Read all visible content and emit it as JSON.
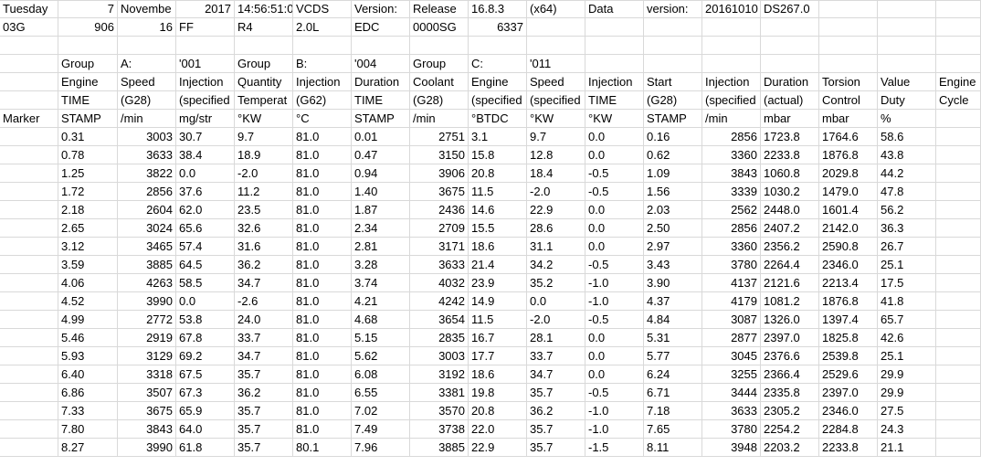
{
  "rows": [
    [
      [
        "Tuesday",
        "t"
      ],
      [
        "7",
        "n"
      ],
      [
        "Novembe",
        "t"
      ],
      [
        "2017",
        "n"
      ],
      [
        "14:56:51:0",
        "t"
      ],
      [
        "VCDS",
        "t"
      ],
      [
        "Version:",
        "t"
      ],
      [
        "Release",
        "t"
      ],
      [
        "16.8.3",
        "t"
      ],
      [
        "(x64)",
        "t"
      ],
      [
        "Data",
        "t"
      ],
      [
        "version:",
        "t"
      ],
      [
        "20161010",
        "t"
      ],
      [
        "DS267.0",
        "t"
      ],
      [
        "",
        "t"
      ],
      [
        "",
        "t"
      ],
      [
        "",
        "t"
      ]
    ],
    [
      [
        "03G",
        "t"
      ],
      [
        "906",
        "n"
      ],
      [
        "16",
        "n"
      ],
      [
        "FF",
        "t"
      ],
      [
        "R4",
        "t"
      ],
      [
        "2.0L",
        "t"
      ],
      [
        "EDC",
        "t"
      ],
      [
        "0000SG",
        "t"
      ],
      [
        "6337",
        "n"
      ],
      [
        "",
        "t"
      ],
      [
        "",
        "t"
      ],
      [
        "",
        "t"
      ],
      [
        "",
        "t"
      ],
      [
        "",
        "t"
      ],
      [
        "",
        "t"
      ],
      [
        "",
        "t"
      ],
      [
        "",
        "t"
      ]
    ],
    [
      [
        "",
        "t"
      ],
      [
        "",
        "t"
      ],
      [
        "",
        "t"
      ],
      [
        "",
        "t"
      ],
      [
        "",
        "t"
      ],
      [
        "",
        "t"
      ],
      [
        "",
        "t"
      ],
      [
        "",
        "t"
      ],
      [
        "",
        "t"
      ],
      [
        "",
        "t"
      ],
      [
        "",
        "t"
      ],
      [
        "",
        "t"
      ],
      [
        "",
        "t"
      ],
      [
        "",
        "t"
      ],
      [
        "",
        "t"
      ],
      [
        "",
        "t"
      ],
      [
        "",
        "t"
      ]
    ],
    [
      [
        "",
        "t"
      ],
      [
        "Group",
        "t"
      ],
      [
        "A:",
        "t"
      ],
      [
        "'001",
        "t"
      ],
      [
        "Group",
        "t"
      ],
      [
        "B:",
        "t"
      ],
      [
        "'004",
        "t"
      ],
      [
        "Group",
        "t"
      ],
      [
        "C:",
        "t"
      ],
      [
        "'011",
        "t"
      ],
      [
        "",
        "t"
      ],
      [
        "",
        "t"
      ],
      [
        "",
        "t"
      ],
      [
        "",
        "t"
      ],
      [
        "",
        "t"
      ],
      [
        "",
        "t"
      ],
      [
        "",
        "t"
      ]
    ],
    [
      [
        "",
        "t"
      ],
      [
        "Engine",
        "t"
      ],
      [
        "Speed",
        "t"
      ],
      [
        "Injection",
        "t"
      ],
      [
        "Quantity",
        "t"
      ],
      [
        "Injection",
        "t"
      ],
      [
        "Duration",
        "t"
      ],
      [
        "Coolant",
        "t"
      ],
      [
        "Engine",
        "t"
      ],
      [
        "Speed",
        "t"
      ],
      [
        "Injection",
        "t"
      ],
      [
        "Start",
        "t"
      ],
      [
        "Injection",
        "t"
      ],
      [
        "Duration",
        "t"
      ],
      [
        "Torsion",
        "t"
      ],
      [
        "Value",
        "t"
      ],
      [
        "Engine",
        "t"
      ]
    ],
    [
      [
        "",
        "t"
      ],
      [
        "TIME",
        "t"
      ],
      [
        "(G28)",
        "t"
      ],
      [
        "(specified",
        "t"
      ],
      [
        "Temperat",
        "t"
      ],
      [
        "(G62)",
        "t"
      ],
      [
        "TIME",
        "t"
      ],
      [
        "(G28)",
        "t"
      ],
      [
        "(specified",
        "t"
      ],
      [
        "(specified",
        "t"
      ],
      [
        "TIME",
        "t"
      ],
      [
        "(G28)",
        "t"
      ],
      [
        "(specified",
        "t"
      ],
      [
        "(actual)",
        "t"
      ],
      [
        "Control",
        "t"
      ],
      [
        "Duty",
        "t"
      ],
      [
        "Cycle",
        "t"
      ]
    ],
    [
      [
        "Marker",
        "t"
      ],
      [
        "STAMP",
        "t"
      ],
      [
        "/min",
        "t"
      ],
      [
        "mg/str",
        "t"
      ],
      [
        "°KW",
        "t"
      ],
      [
        "°C",
        "t"
      ],
      [
        "STAMP",
        "t"
      ],
      [
        "/min",
        "t"
      ],
      [
        "°BTDC",
        "t"
      ],
      [
        "°KW",
        "t"
      ],
      [
        "°KW",
        "t"
      ],
      [
        "STAMP",
        "t"
      ],
      [
        "/min",
        "t"
      ],
      [
        "mbar",
        "t"
      ],
      [
        "mbar",
        "t"
      ],
      [
        "%",
        "t"
      ],
      [
        "",
        "t"
      ]
    ],
    [
      [
        "",
        "t"
      ],
      [
        "0.31",
        "t"
      ],
      [
        "3003",
        "n"
      ],
      [
        "30.7",
        "t"
      ],
      [
        "9.7",
        "t"
      ],
      [
        "81.0",
        "t"
      ],
      [
        "0.01",
        "t"
      ],
      [
        "2751",
        "n"
      ],
      [
        "3.1",
        "t"
      ],
      [
        "9.7",
        "t"
      ],
      [
        "0.0",
        "t"
      ],
      [
        "0.16",
        "t"
      ],
      [
        "2856",
        "n"
      ],
      [
        "1723.8",
        "t"
      ],
      [
        "1764.6",
        "t"
      ],
      [
        "58.6",
        "t"
      ],
      [
        "",
        "t"
      ]
    ],
    [
      [
        "",
        "t"
      ],
      [
        "0.78",
        "t"
      ],
      [
        "3633",
        "n"
      ],
      [
        "38.4",
        "t"
      ],
      [
        "18.9",
        "t"
      ],
      [
        "81.0",
        "t"
      ],
      [
        "0.47",
        "t"
      ],
      [
        "3150",
        "n"
      ],
      [
        "15.8",
        "t"
      ],
      [
        "12.8",
        "t"
      ],
      [
        "0.0",
        "t"
      ],
      [
        "0.62",
        "t"
      ],
      [
        "3360",
        "n"
      ],
      [
        "2233.8",
        "t"
      ],
      [
        "1876.8",
        "t"
      ],
      [
        "43.8",
        "t"
      ],
      [
        "",
        "t"
      ]
    ],
    [
      [
        "",
        "t"
      ],
      [
        "1.25",
        "t"
      ],
      [
        "3822",
        "n"
      ],
      [
        "0.0",
        "t"
      ],
      [
        "-2.0",
        "t"
      ],
      [
        "81.0",
        "t"
      ],
      [
        "0.94",
        "t"
      ],
      [
        "3906",
        "n"
      ],
      [
        "20.8",
        "t"
      ],
      [
        "18.4",
        "t"
      ],
      [
        "-0.5",
        "t"
      ],
      [
        "1.09",
        "t"
      ],
      [
        "3843",
        "n"
      ],
      [
        "1060.8",
        "t"
      ],
      [
        "2029.8",
        "t"
      ],
      [
        "44.2",
        "t"
      ],
      [
        "",
        "t"
      ]
    ],
    [
      [
        "",
        "t"
      ],
      [
        "1.72",
        "t"
      ],
      [
        "2856",
        "n"
      ],
      [
        "37.6",
        "t"
      ],
      [
        "11.2",
        "t"
      ],
      [
        "81.0",
        "t"
      ],
      [
        "1.40",
        "t"
      ],
      [
        "3675",
        "n"
      ],
      [
        "11.5",
        "t"
      ],
      [
        "-2.0",
        "t"
      ],
      [
        "-0.5",
        "t"
      ],
      [
        "1.56",
        "t"
      ],
      [
        "3339",
        "n"
      ],
      [
        "1030.2",
        "t"
      ],
      [
        "1479.0",
        "t"
      ],
      [
        "47.8",
        "t"
      ],
      [
        "",
        "t"
      ]
    ],
    [
      [
        "",
        "t"
      ],
      [
        "2.18",
        "t"
      ],
      [
        "2604",
        "n"
      ],
      [
        "62.0",
        "t"
      ],
      [
        "23.5",
        "t"
      ],
      [
        "81.0",
        "t"
      ],
      [
        "1.87",
        "t"
      ],
      [
        "2436",
        "n"
      ],
      [
        "14.6",
        "t"
      ],
      [
        "22.9",
        "t"
      ],
      [
        "0.0",
        "t"
      ],
      [
        "2.03",
        "t"
      ],
      [
        "2562",
        "n"
      ],
      [
        "2448.0",
        "t"
      ],
      [
        "1601.4",
        "t"
      ],
      [
        "56.2",
        "t"
      ],
      [
        "",
        "t"
      ]
    ],
    [
      [
        "",
        "t"
      ],
      [
        "2.65",
        "t"
      ],
      [
        "3024",
        "n"
      ],
      [
        "65.6",
        "t"
      ],
      [
        "32.6",
        "t"
      ],
      [
        "81.0",
        "t"
      ],
      [
        "2.34",
        "t"
      ],
      [
        "2709",
        "n"
      ],
      [
        "15.5",
        "t"
      ],
      [
        "28.6",
        "t"
      ],
      [
        "0.0",
        "t"
      ],
      [
        "2.50",
        "t"
      ],
      [
        "2856",
        "n"
      ],
      [
        "2407.2",
        "t"
      ],
      [
        "2142.0",
        "t"
      ],
      [
        "36.3",
        "t"
      ],
      [
        "",
        "t"
      ]
    ],
    [
      [
        "",
        "t"
      ],
      [
        "3.12",
        "t"
      ],
      [
        "3465",
        "n"
      ],
      [
        "57.4",
        "t"
      ],
      [
        "31.6",
        "t"
      ],
      [
        "81.0",
        "t"
      ],
      [
        "2.81",
        "t"
      ],
      [
        "3171",
        "n"
      ],
      [
        "18.6",
        "t"
      ],
      [
        "31.1",
        "t"
      ],
      [
        "0.0",
        "t"
      ],
      [
        "2.97",
        "t"
      ],
      [
        "3360",
        "n"
      ],
      [
        "2356.2",
        "t"
      ],
      [
        "2590.8",
        "t"
      ],
      [
        "26.7",
        "t"
      ],
      [
        "",
        "t"
      ]
    ],
    [
      [
        "",
        "t"
      ],
      [
        "3.59",
        "t"
      ],
      [
        "3885",
        "n"
      ],
      [
        "64.5",
        "t"
      ],
      [
        "36.2",
        "t"
      ],
      [
        "81.0",
        "t"
      ],
      [
        "3.28",
        "t"
      ],
      [
        "3633",
        "n"
      ],
      [
        "21.4",
        "t"
      ],
      [
        "34.2",
        "t"
      ],
      [
        "-0.5",
        "t"
      ],
      [
        "3.43",
        "t"
      ],
      [
        "3780",
        "n"
      ],
      [
        "2264.4",
        "t"
      ],
      [
        "2346.0",
        "t"
      ],
      [
        "25.1",
        "t"
      ],
      [
        "",
        "t"
      ]
    ],
    [
      [
        "",
        "t"
      ],
      [
        "4.06",
        "t"
      ],
      [
        "4263",
        "n"
      ],
      [
        "58.5",
        "t"
      ],
      [
        "34.7",
        "t"
      ],
      [
        "81.0",
        "t"
      ],
      [
        "3.74",
        "t"
      ],
      [
        "4032",
        "n"
      ],
      [
        "23.9",
        "t"
      ],
      [
        "35.2",
        "t"
      ],
      [
        "-1.0",
        "t"
      ],
      [
        "3.90",
        "t"
      ],
      [
        "4137",
        "n"
      ],
      [
        "2121.6",
        "t"
      ],
      [
        "2213.4",
        "t"
      ],
      [
        "17.5",
        "t"
      ],
      [
        "",
        "t"
      ]
    ],
    [
      [
        "",
        "t"
      ],
      [
        "4.52",
        "t"
      ],
      [
        "3990",
        "n"
      ],
      [
        "0.0",
        "t"
      ],
      [
        "-2.6",
        "t"
      ],
      [
        "81.0",
        "t"
      ],
      [
        "4.21",
        "t"
      ],
      [
        "4242",
        "n"
      ],
      [
        "14.9",
        "t"
      ],
      [
        "0.0",
        "t"
      ],
      [
        "-1.0",
        "t"
      ],
      [
        "4.37",
        "t"
      ],
      [
        "4179",
        "n"
      ],
      [
        "1081.2",
        "t"
      ],
      [
        "1876.8",
        "t"
      ],
      [
        "41.8",
        "t"
      ],
      [
        "",
        "t"
      ]
    ],
    [
      [
        "",
        "t"
      ],
      [
        "4.99",
        "t"
      ],
      [
        "2772",
        "n"
      ],
      [
        "53.8",
        "t"
      ],
      [
        "24.0",
        "t"
      ],
      [
        "81.0",
        "t"
      ],
      [
        "4.68",
        "t"
      ],
      [
        "3654",
        "n"
      ],
      [
        "11.5",
        "t"
      ],
      [
        "-2.0",
        "t"
      ],
      [
        "-0.5",
        "t"
      ],
      [
        "4.84",
        "t"
      ],
      [
        "3087",
        "n"
      ],
      [
        "1326.0",
        "t"
      ],
      [
        "1397.4",
        "t"
      ],
      [
        "65.7",
        "t"
      ],
      [
        "",
        "t"
      ]
    ],
    [
      [
        "",
        "t"
      ],
      [
        "5.46",
        "t"
      ],
      [
        "2919",
        "n"
      ],
      [
        "67.8",
        "t"
      ],
      [
        "33.7",
        "t"
      ],
      [
        "81.0",
        "t"
      ],
      [
        "5.15",
        "t"
      ],
      [
        "2835",
        "n"
      ],
      [
        "16.7",
        "t"
      ],
      [
        "28.1",
        "t"
      ],
      [
        "0.0",
        "t"
      ],
      [
        "5.31",
        "t"
      ],
      [
        "2877",
        "n"
      ],
      [
        "2397.0",
        "t"
      ],
      [
        "1825.8",
        "t"
      ],
      [
        "42.6",
        "t"
      ],
      [
        "",
        "t"
      ]
    ],
    [
      [
        "",
        "t"
      ],
      [
        "5.93",
        "t"
      ],
      [
        "3129",
        "n"
      ],
      [
        "69.2",
        "t"
      ],
      [
        "34.7",
        "t"
      ],
      [
        "81.0",
        "t"
      ],
      [
        "5.62",
        "t"
      ],
      [
        "3003",
        "n"
      ],
      [
        "17.7",
        "t"
      ],
      [
        "33.7",
        "t"
      ],
      [
        "0.0",
        "t"
      ],
      [
        "5.77",
        "t"
      ],
      [
        "3045",
        "n"
      ],
      [
        "2376.6",
        "t"
      ],
      [
        "2539.8",
        "t"
      ],
      [
        "25.1",
        "t"
      ],
      [
        "",
        "t"
      ]
    ],
    [
      [
        "",
        "t"
      ],
      [
        "6.40",
        "t"
      ],
      [
        "3318",
        "n"
      ],
      [
        "67.5",
        "t"
      ],
      [
        "35.7",
        "t"
      ],
      [
        "81.0",
        "t"
      ],
      [
        "6.08",
        "t"
      ],
      [
        "3192",
        "n"
      ],
      [
        "18.6",
        "t"
      ],
      [
        "34.7",
        "t"
      ],
      [
        "0.0",
        "t"
      ],
      [
        "6.24",
        "t"
      ],
      [
        "3255",
        "n"
      ],
      [
        "2366.4",
        "t"
      ],
      [
        "2529.6",
        "t"
      ],
      [
        "29.9",
        "t"
      ],
      [
        "",
        "t"
      ]
    ],
    [
      [
        "",
        "t"
      ],
      [
        "6.86",
        "t"
      ],
      [
        "3507",
        "n"
      ],
      [
        "67.3",
        "t"
      ],
      [
        "36.2",
        "t"
      ],
      [
        "81.0",
        "t"
      ],
      [
        "6.55",
        "t"
      ],
      [
        "3381",
        "n"
      ],
      [
        "19.8",
        "t"
      ],
      [
        "35.7",
        "t"
      ],
      [
        "-0.5",
        "t"
      ],
      [
        "6.71",
        "t"
      ],
      [
        "3444",
        "n"
      ],
      [
        "2335.8",
        "t"
      ],
      [
        "2397.0",
        "t"
      ],
      [
        "29.9",
        "t"
      ],
      [
        "",
        "t"
      ]
    ],
    [
      [
        "",
        "t"
      ],
      [
        "7.33",
        "t"
      ],
      [
        "3675",
        "n"
      ],
      [
        "65.9",
        "t"
      ],
      [
        "35.7",
        "t"
      ],
      [
        "81.0",
        "t"
      ],
      [
        "7.02",
        "t"
      ],
      [
        "3570",
        "n"
      ],
      [
        "20.8",
        "t"
      ],
      [
        "36.2",
        "t"
      ],
      [
        "-1.0",
        "t"
      ],
      [
        "7.18",
        "t"
      ],
      [
        "3633",
        "n"
      ],
      [
        "2305.2",
        "t"
      ],
      [
        "2346.0",
        "t"
      ],
      [
        "27.5",
        "t"
      ],
      [
        "",
        "t"
      ]
    ],
    [
      [
        "",
        "t"
      ],
      [
        "7.80",
        "t"
      ],
      [
        "3843",
        "n"
      ],
      [
        "64.0",
        "t"
      ],
      [
        "35.7",
        "t"
      ],
      [
        "81.0",
        "t"
      ],
      [
        "7.49",
        "t"
      ],
      [
        "3738",
        "n"
      ],
      [
        "22.0",
        "t"
      ],
      [
        "35.7",
        "t"
      ],
      [
        "-1.0",
        "t"
      ],
      [
        "7.65",
        "t"
      ],
      [
        "3780",
        "n"
      ],
      [
        "2254.2",
        "t"
      ],
      [
        "2284.8",
        "t"
      ],
      [
        "24.3",
        "t"
      ],
      [
        "",
        "t"
      ]
    ],
    [
      [
        "",
        "t"
      ],
      [
        "8.27",
        "t"
      ],
      [
        "3990",
        "n"
      ],
      [
        "61.8",
        "t"
      ],
      [
        "35.7",
        "t"
      ],
      [
        "80.1",
        "t"
      ],
      [
        "7.96",
        "t"
      ],
      [
        "3885",
        "n"
      ],
      [
        "22.9",
        "t"
      ],
      [
        "35.7",
        "t"
      ],
      [
        "-1.5",
        "t"
      ],
      [
        "8.11",
        "t"
      ],
      [
        "3948",
        "n"
      ],
      [
        "2203.2",
        "t"
      ],
      [
        "2233.8",
        "t"
      ],
      [
        "21.1",
        "t"
      ],
      [
        "",
        "t"
      ]
    ]
  ]
}
